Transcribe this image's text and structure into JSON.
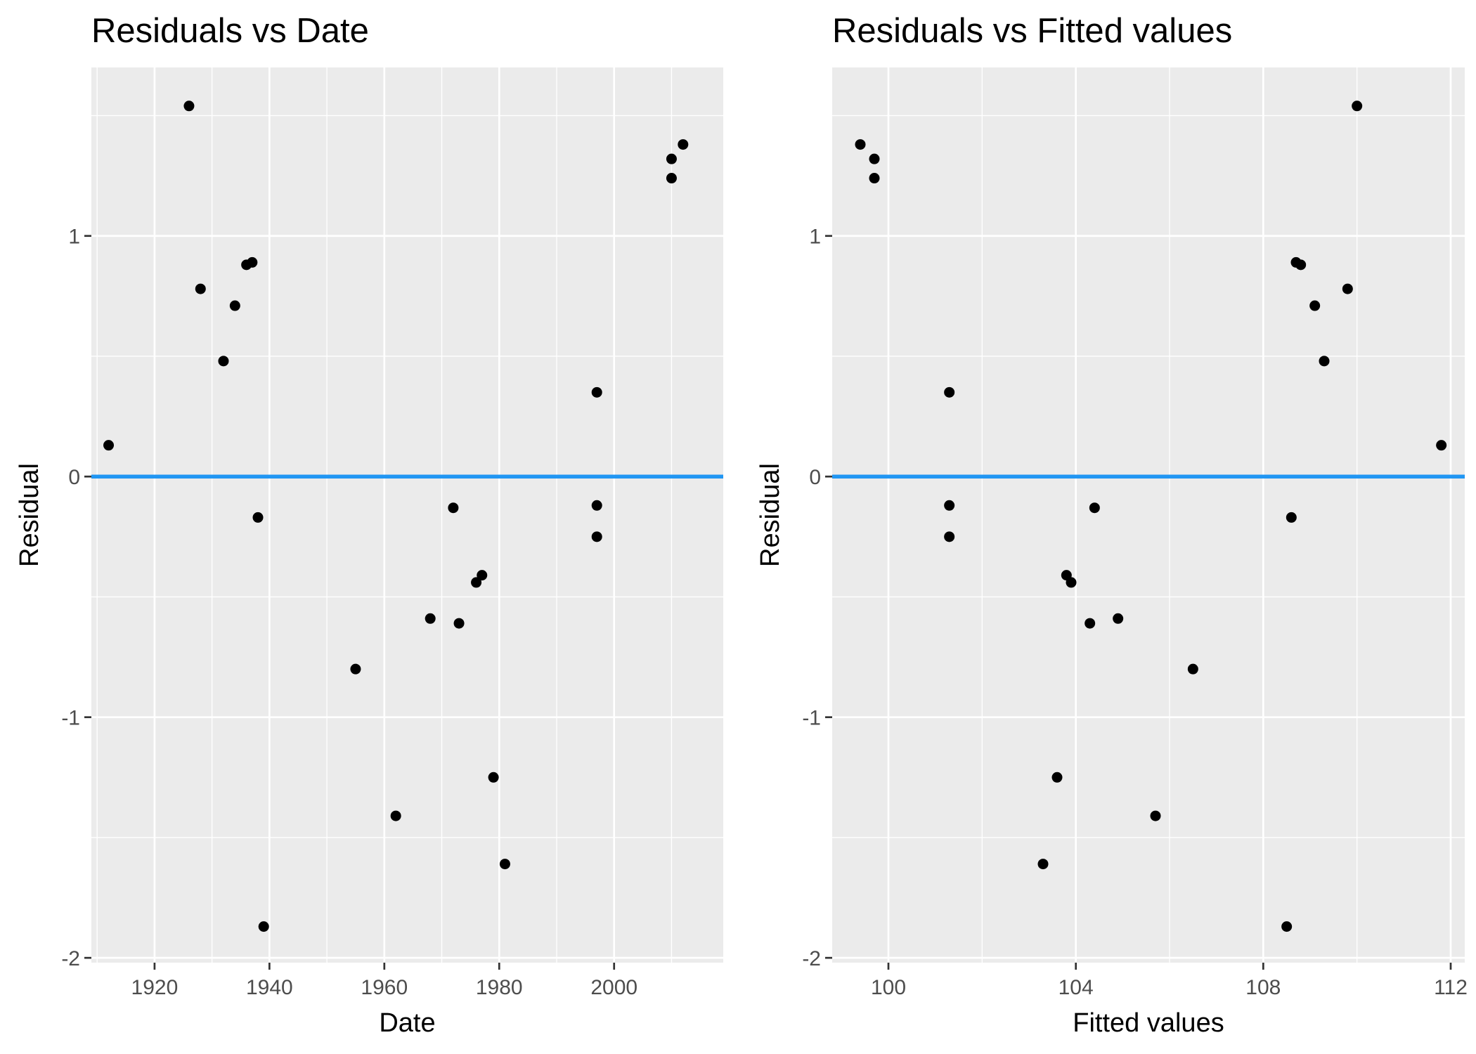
{
  "chart_data": [
    {
      "type": "scatter",
      "title": "Residuals vs Date",
      "xlabel": "Date",
      "ylabel": "Residual",
      "xlim": [
        1909,
        2019
      ],
      "ylim": [
        -2.02,
        1.7
      ],
      "x_ticks": [
        1920,
        1940,
        1960,
        1980,
        2000
      ],
      "x_tick_labels": [
        "1920",
        "1940",
        "1960",
        "1980",
        "2000"
      ],
      "y_ticks": [
        -2,
        -1,
        0,
        1
      ],
      "y_tick_labels": [
        "-2",
        "-1",
        "0",
        "1"
      ],
      "grid": true,
      "reference_line": {
        "y": 0,
        "color": "#2196F3"
      },
      "series": [
        {
          "points": [
            {
              "x": 1912,
              "y": 0.13
            },
            {
              "x": 1926,
              "y": 1.54
            },
            {
              "x": 1928,
              "y": 0.78
            },
            {
              "x": 1932,
              "y": 0.48
            },
            {
              "x": 1934,
              "y": 0.71
            },
            {
              "x": 1936,
              "y": 0.88
            },
            {
              "x": 1937,
              "y": 0.89
            },
            {
              "x": 1938,
              "y": -0.17
            },
            {
              "x": 1939,
              "y": -1.87
            },
            {
              "x": 1955,
              "y": -0.8
            },
            {
              "x": 1962,
              "y": -1.41
            },
            {
              "x": 1968,
              "y": -0.59
            },
            {
              "x": 1972,
              "y": -0.13
            },
            {
              "x": 1973,
              "y": -0.61
            },
            {
              "x": 1976,
              "y": -0.44
            },
            {
              "x": 1977,
              "y": -0.41
            },
            {
              "x": 1979,
              "y": -1.25
            },
            {
              "x": 1981,
              "y": -1.61
            },
            {
              "x": 1997,
              "y": 0.35
            },
            {
              "x": 1997,
              "y": -0.12
            },
            {
              "x": 1997,
              "y": -0.25
            },
            {
              "x": 2010,
              "y": 1.32
            },
            {
              "x": 2010,
              "y": 1.24
            },
            {
              "x": 2012,
              "y": 1.38
            }
          ]
        }
      ]
    },
    {
      "type": "scatter",
      "title": "Residuals vs Fitted values",
      "xlabel": "Fitted values",
      "ylabel": "Residual",
      "xlim": [
        98.8,
        112.3
      ],
      "ylim": [
        -2.02,
        1.7
      ],
      "x_ticks": [
        100,
        104,
        108,
        112
      ],
      "x_tick_labels": [
        "100",
        "104",
        "108",
        "112"
      ],
      "y_ticks": [
        -2,
        -1,
        0,
        1
      ],
      "y_tick_labels": [
        "-2",
        "-1",
        "0",
        "1"
      ],
      "grid": true,
      "reference_line": {
        "y": 0,
        "color": "#2196F3"
      },
      "series": [
        {
          "points": [
            {
              "x": 111.8,
              "y": 0.13
            },
            {
              "x": 110.0,
              "y": 1.54
            },
            {
              "x": 109.8,
              "y": 0.78
            },
            {
              "x": 109.3,
              "y": 0.48
            },
            {
              "x": 109.1,
              "y": 0.71
            },
            {
              "x": 108.8,
              "y": 0.88
            },
            {
              "x": 108.7,
              "y": 0.89
            },
            {
              "x": 108.6,
              "y": -0.17
            },
            {
              "x": 108.5,
              "y": -1.87
            },
            {
              "x": 106.5,
              "y": -0.8
            },
            {
              "x": 105.7,
              "y": -1.41
            },
            {
              "x": 104.9,
              "y": -0.59
            },
            {
              "x": 104.4,
              "y": -0.13
            },
            {
              "x": 104.3,
              "y": -0.61
            },
            {
              "x": 103.9,
              "y": -0.44
            },
            {
              "x": 103.8,
              "y": -0.41
            },
            {
              "x": 103.6,
              "y": -1.25
            },
            {
              "x": 103.3,
              "y": -1.61
            },
            {
              "x": 101.3,
              "y": 0.35
            },
            {
              "x": 101.3,
              "y": -0.12
            },
            {
              "x": 101.3,
              "y": -0.25
            },
            {
              "x": 99.7,
              "y": 1.32
            },
            {
              "x": 99.7,
              "y": 1.24
            },
            {
              "x": 99.4,
              "y": 1.38
            }
          ]
        }
      ]
    }
  ]
}
